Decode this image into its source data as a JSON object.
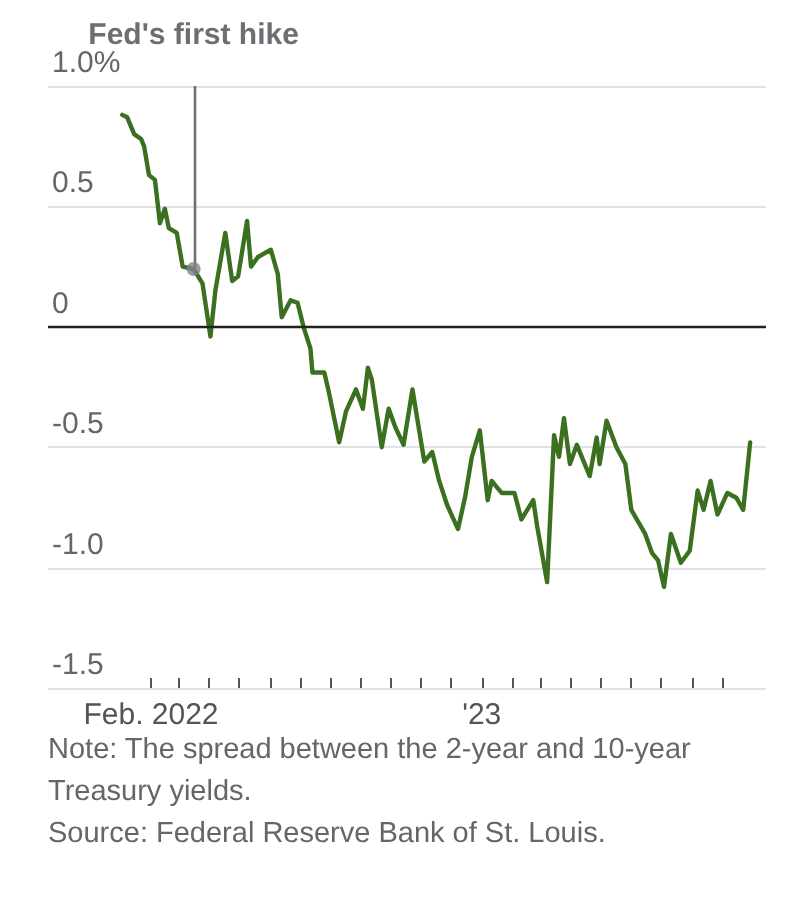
{
  "chart_data": {
    "type": "line",
    "x": [
      "2022-01-03",
      "2022-01-08",
      "2022-01-15",
      "2022-01-22",
      "2022-01-25",
      "2022-01-30",
      "2022-02-05",
      "2022-02-10",
      "2022-02-15",
      "2022-02-19",
      "2022-02-27",
      "2022-03-05",
      "2022-03-16",
      "2022-03-25",
      "2022-04-02",
      "2022-04-07",
      "2022-04-17",
      "2022-04-24",
      "2022-04-30",
      "2022-05-09",
      "2022-05-13",
      "2022-05-20",
      "2022-06-02",
      "2022-06-09",
      "2022-06-13",
      "2022-06-22",
      "2022-06-29",
      "2022-07-05",
      "2022-07-12",
      "2022-07-14",
      "2022-07-26",
      "2022-07-30",
      "2022-08-10",
      "2022-08-17",
      "2022-08-27",
      "2022-09-03",
      "2022-09-08",
      "2022-09-12",
      "2022-09-22",
      "2022-09-29",
      "2022-10-06",
      "2022-10-14",
      "2022-10-23",
      "2022-11-04",
      "2022-11-12",
      "2022-11-19",
      "2022-11-27",
      "2022-12-08",
      "2022-12-15",
      "2022-12-22",
      "2022-12-30",
      "2023-01-07",
      "2023-01-11",
      "2023-01-21",
      "2023-02-03",
      "2023-02-10",
      "2023-02-22",
      "2023-02-26",
      "2023-03-08",
      "2023-03-15",
      "2023-03-20",
      "2023-03-25",
      "2023-03-31",
      "2023-04-07",
      "2023-04-20",
      "2023-04-27",
      "2023-04-30",
      "2023-05-07",
      "2023-05-17",
      "2023-05-26",
      "2023-06-01",
      "2023-06-15",
      "2023-06-22",
      "2023-06-28",
      "2023-07-04",
      "2023-07-11",
      "2023-07-21",
      "2023-07-30",
      "2023-08-07",
      "2023-08-13",
      "2023-08-20",
      "2023-08-27",
      "2023-09-06",
      "2023-09-15",
      "2023-09-22",
      "2023-09-29"
    ],
    "series": [
      {
        "type": "line",
        "color": "#3b7021",
        "values": [
          0.88,
          0.87,
          0.8,
          0.78,
          0.75,
          0.63,
          0.61,
          0.43,
          0.49,
          0.41,
          0.39,
          0.25,
          0.24,
          0.18,
          -0.04,
          0.15,
          0.39,
          0.19,
          0.21,
          0.44,
          0.25,
          0.29,
          0.32,
          0.22,
          0.04,
          0.11,
          0.1,
          0.0,
          -0.09,
          -0.19,
          -0.19,
          -0.26,
          -0.48,
          -0.35,
          -0.26,
          -0.34,
          -0.17,
          -0.22,
          -0.5,
          -0.34,
          -0.42,
          -0.49,
          -0.26,
          -0.56,
          -0.52,
          -0.64,
          -0.74,
          -0.84,
          -0.71,
          -0.54,
          -0.43,
          -0.72,
          -0.64,
          -0.69,
          -0.69,
          -0.8,
          -0.72,
          -0.83,
          -1.06,
          -0.45,
          -0.54,
          -0.38,
          -0.57,
          -0.49,
          -0.62,
          -0.46,
          -0.57,
          -0.39,
          -0.5,
          -0.57,
          -0.76,
          -0.86,
          -0.94,
          -0.97,
          -1.08,
          -0.86,
          -0.98,
          -0.93,
          -0.68,
          -0.76,
          -0.64,
          -0.78,
          -0.69,
          -0.71,
          -0.76,
          -0.48
        ]
      },
      {
        "type": "scatter",
        "color": "#7f8388",
        "marker": "circle",
        "x": [
          "2022-03-16"
        ],
        "values": [
          0.24
        ]
      }
    ],
    "xlim": [
      "2021-10-20",
      "2023-10-15"
    ],
    "xticks": [
      {
        "value": "2022-02-01",
        "label": "Feb. 2022"
      },
      {
        "value": "2022-03-01",
        "label": null
      },
      {
        "value": "2022-04-01",
        "label": null
      },
      {
        "value": "2022-05-01",
        "label": null
      },
      {
        "value": "2022-06-01",
        "label": null
      },
      {
        "value": "2022-07-01",
        "label": null
      },
      {
        "value": "2022-08-01",
        "label": null
      },
      {
        "value": "2022-09-01",
        "label": null
      },
      {
        "value": "2022-10-01",
        "label": null
      },
      {
        "value": "2022-11-01",
        "label": null
      },
      {
        "value": "2022-12-01",
        "label": null
      },
      {
        "value": "2023-01-01",
        "label": "'23"
      },
      {
        "value": "2023-02-01",
        "label": null
      },
      {
        "value": "2023-03-01",
        "label": null
      },
      {
        "value": "2023-04-01",
        "label": null
      },
      {
        "value": "2023-05-01",
        "label": null
      },
      {
        "value": "2023-06-01",
        "label": null
      },
      {
        "value": "2023-07-01",
        "label": null
      },
      {
        "value": "2023-08-01",
        "label": null
      },
      {
        "value": "2023-09-01",
        "label": null
      }
    ],
    "ylim": [
      -1.5,
      1.0
    ],
    "yticks": [
      -1.5,
      {
        "value": -1,
        "label": "-1.0"
      },
      -0.5,
      0,
      0.5,
      {
        "value": 1,
        "label": "1.0%"
      }
    ],
    "grid": "y",
    "marker": "none",
    "ref_lines": [
      {
        "axis": "x",
        "value": "2022-03-16",
        "label": "Fed's first hike",
        "color": "#6b6e72"
      },
      {
        "axis": "y",
        "value": 0,
        "label": null,
        "color": "#222222"
      }
    ],
    "annotations": [
      "Note: The spread between the 2-year and 10-year Treasury yields.",
      "Source: Federal Reserve Bank of St. Louis."
    ]
  }
}
